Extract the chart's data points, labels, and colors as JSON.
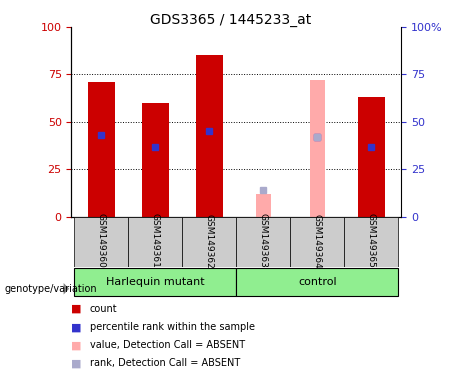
{
  "title": "GDS3365 / 1445233_at",
  "samples": [
    "GSM149360",
    "GSM149361",
    "GSM149362",
    "GSM149363",
    "GSM149364",
    "GSM149365"
  ],
  "red_values": [
    71,
    60,
    85,
    null,
    null,
    63
  ],
  "blue_values": [
    43,
    37,
    45,
    null,
    42,
    37
  ],
  "pink_values": [
    null,
    null,
    null,
    12,
    72,
    null
  ],
  "lightblue_values": [
    null,
    null,
    null,
    14,
    42,
    null
  ],
  "red_color": "#CC0000",
  "blue_color": "#3333CC",
  "absent_pink_color": "#FFAAAA",
  "absent_blue_color": "#AAAACC",
  "yticks": [
    0,
    25,
    50,
    75,
    100
  ],
  "right_ytick_labels": [
    "0",
    "25",
    "50",
    "75",
    "100%"
  ],
  "legend_items": [
    {
      "color": "#CC0000",
      "label": "count"
    },
    {
      "color": "#3333CC",
      "label": "percentile rank within the sample"
    },
    {
      "color": "#FFAAAA",
      "label": "value, Detection Call = ABSENT"
    },
    {
      "color": "#AAAACC",
      "label": "rank, Detection Call = ABSENT"
    }
  ]
}
